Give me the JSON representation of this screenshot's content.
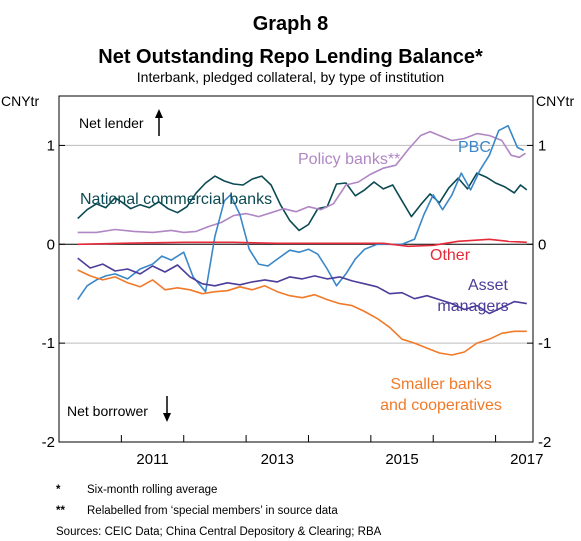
{
  "chart_data": {
    "type": "line",
    "graph_number": "Graph 8",
    "title": "Net Outstanding Repo Lending Balance*",
    "subtitle": "Interbank, pledged collateral, by type of institution",
    "ylabel_left": "CNYtr",
    "ylabel_right": "CNYtr",
    "ylim": [
      -2,
      1.5
    ],
    "xlim": [
      2010.0,
      2017.6
    ],
    "y_ticks": [
      -2,
      -1,
      0,
      1
    ],
    "y_tick_labels": [
      "-2",
      "-1",
      "0",
      "1"
    ],
    "x_ticks": [
      2011.5,
      2013.5,
      2015.5,
      2017.5
    ],
    "x_tick_labels": [
      "2011",
      "2013",
      "2015",
      "2017"
    ],
    "grid": true,
    "annotations": {
      "net_lender": "Net lender",
      "net_borrower": "Net borrower"
    },
    "series": [
      {
        "name": "National commercial banks",
        "label": "National commercial banks",
        "color": "#0b4a52",
        "points": [
          [
            2010.3,
            0.26
          ],
          [
            2010.45,
            0.35
          ],
          [
            2010.6,
            0.41
          ],
          [
            2010.75,
            0.37
          ],
          [
            2010.9,
            0.47
          ],
          [
            2011.0,
            0.43
          ],
          [
            2011.15,
            0.36
          ],
          [
            2011.3,
            0.4
          ],
          [
            2011.45,
            0.37
          ],
          [
            2011.6,
            0.43
          ],
          [
            2011.75,
            0.36
          ],
          [
            2011.9,
            0.32
          ],
          [
            2012.05,
            0.38
          ],
          [
            2012.2,
            0.52
          ],
          [
            2012.35,
            0.62
          ],
          [
            2012.5,
            0.69
          ],
          [
            2012.65,
            0.64
          ],
          [
            2012.8,
            0.61
          ],
          [
            2012.95,
            0.6
          ],
          [
            2013.1,
            0.66
          ],
          [
            2013.25,
            0.69
          ],
          [
            2013.4,
            0.6
          ],
          [
            2013.55,
            0.4
          ],
          [
            2013.7,
            0.24
          ],
          [
            2013.85,
            0.14
          ],
          [
            2014.0,
            0.2
          ],
          [
            2014.15,
            0.36
          ],
          [
            2014.3,
            0.38
          ],
          [
            2014.45,
            0.61
          ],
          [
            2014.6,
            0.62
          ],
          [
            2014.75,
            0.49
          ],
          [
            2014.9,
            0.55
          ],
          [
            2015.05,
            0.63
          ],
          [
            2015.2,
            0.56
          ],
          [
            2015.35,
            0.6
          ],
          [
            2015.5,
            0.44
          ],
          [
            2015.65,
            0.28
          ],
          [
            2015.8,
            0.4
          ],
          [
            2015.95,
            0.51
          ],
          [
            2016.1,
            0.42
          ],
          [
            2016.25,
            0.57
          ],
          [
            2016.4,
            0.67
          ],
          [
            2016.55,
            0.56
          ],
          [
            2016.7,
            0.72
          ],
          [
            2016.85,
            0.68
          ],
          [
            2017.0,
            0.62
          ],
          [
            2017.15,
            0.58
          ],
          [
            2017.3,
            0.52
          ],
          [
            2017.4,
            0.6
          ],
          [
            2017.5,
            0.55
          ]
        ]
      },
      {
        "name": "Policy banks**",
        "label": "Policy banks**",
        "color": "#b086c4",
        "points": [
          [
            2010.3,
            0.12
          ],
          [
            2010.6,
            0.12
          ],
          [
            2010.9,
            0.15
          ],
          [
            2011.2,
            0.13
          ],
          [
            2011.5,
            0.12
          ],
          [
            2011.8,
            0.14
          ],
          [
            2012.0,
            0.12
          ],
          [
            2012.2,
            0.13
          ],
          [
            2012.4,
            0.18
          ],
          [
            2012.6,
            0.22
          ],
          [
            2012.8,
            0.29
          ],
          [
            2013.0,
            0.31
          ],
          [
            2013.2,
            0.28
          ],
          [
            2013.4,
            0.32
          ],
          [
            2013.6,
            0.36
          ],
          [
            2013.8,
            0.33
          ],
          [
            2014.0,
            0.38
          ],
          [
            2014.2,
            0.35
          ],
          [
            2014.4,
            0.41
          ],
          [
            2014.6,
            0.6
          ],
          [
            2014.8,
            0.63
          ],
          [
            2015.0,
            0.71
          ],
          [
            2015.2,
            0.77
          ],
          [
            2015.4,
            0.8
          ],
          [
            2015.6,
            0.96
          ],
          [
            2015.8,
            1.1
          ],
          [
            2015.95,
            1.14
          ],
          [
            2016.1,
            1.1
          ],
          [
            2016.3,
            1.05
          ],
          [
            2016.5,
            1.07
          ],
          [
            2016.7,
            1.12
          ],
          [
            2016.9,
            1.1
          ],
          [
            2017.1,
            1.05
          ],
          [
            2017.25,
            0.9
          ],
          [
            2017.38,
            0.88
          ],
          [
            2017.48,
            0.92
          ]
        ]
      },
      {
        "name": "PBC",
        "label": "PBC",
        "color": "#3a87c8",
        "points": [
          [
            2010.3,
            -0.56
          ],
          [
            2010.45,
            -0.42
          ],
          [
            2010.6,
            -0.36
          ],
          [
            2010.75,
            -0.32
          ],
          [
            2010.9,
            -0.3
          ],
          [
            2011.1,
            -0.35
          ],
          [
            2011.3,
            -0.25
          ],
          [
            2011.5,
            -0.2
          ],
          [
            2011.65,
            -0.12
          ],
          [
            2011.8,
            -0.16
          ],
          [
            2012.0,
            -0.08
          ],
          [
            2012.15,
            -0.33
          ],
          [
            2012.35,
            -0.48
          ],
          [
            2012.5,
            0.08
          ],
          [
            2012.65,
            0.44
          ],
          [
            2012.75,
            0.5
          ],
          [
            2012.9,
            0.3
          ],
          [
            2013.05,
            -0.05
          ],
          [
            2013.2,
            -0.2
          ],
          [
            2013.35,
            -0.22
          ],
          [
            2013.5,
            -0.15
          ],
          [
            2013.7,
            -0.06
          ],
          [
            2013.85,
            -0.08
          ],
          [
            2014.0,
            -0.05
          ],
          [
            2014.15,
            -0.1
          ],
          [
            2014.3,
            -0.25
          ],
          [
            2014.45,
            -0.42
          ],
          [
            2014.6,
            -0.3
          ],
          [
            2014.75,
            -0.15
          ],
          [
            2014.9,
            -0.05
          ],
          [
            2015.1,
            0.0
          ],
          [
            2015.3,
            0.0
          ],
          [
            2015.5,
            0.0
          ],
          [
            2015.7,
            0.05
          ],
          [
            2015.85,
            0.3
          ],
          [
            2016.0,
            0.5
          ],
          [
            2016.15,
            0.35
          ],
          [
            2016.3,
            0.5
          ],
          [
            2016.45,
            0.72
          ],
          [
            2016.6,
            0.55
          ],
          [
            2016.75,
            0.75
          ],
          [
            2016.9,
            0.9
          ],
          [
            2017.05,
            1.15
          ],
          [
            2017.2,
            1.2
          ],
          [
            2017.35,
            0.98
          ],
          [
            2017.45,
            0.95
          ]
        ]
      },
      {
        "name": "Other",
        "label": "Other",
        "color": "#e52a3a",
        "points": [
          [
            2010.3,
            0.0
          ],
          [
            2011.0,
            0.01
          ],
          [
            2012.0,
            0.02
          ],
          [
            2012.8,
            0.02
          ],
          [
            2013.5,
            0.01
          ],
          [
            2014.5,
            0.01
          ],
          [
            2015.2,
            0.01
          ],
          [
            2015.6,
            -0.02
          ],
          [
            2016.0,
            -0.01
          ],
          [
            2016.4,
            0.03
          ],
          [
            2016.9,
            0.05
          ],
          [
            2017.2,
            0.03
          ],
          [
            2017.5,
            0.02
          ]
        ]
      },
      {
        "name": "Asset managers",
        "label": "Asset managers",
        "color": "#4b3d9a",
        "points": [
          [
            2010.3,
            -0.14
          ],
          [
            2010.5,
            -0.24
          ],
          [
            2010.7,
            -0.2
          ],
          [
            2010.9,
            -0.27
          ],
          [
            2011.1,
            -0.25
          ],
          [
            2011.3,
            -0.3
          ],
          [
            2011.5,
            -0.22
          ],
          [
            2011.7,
            -0.28
          ],
          [
            2011.9,
            -0.21
          ],
          [
            2012.1,
            -0.33
          ],
          [
            2012.3,
            -0.4
          ],
          [
            2012.5,
            -0.42
          ],
          [
            2012.7,
            -0.39
          ],
          [
            2012.9,
            -0.41
          ],
          [
            2013.1,
            -0.38
          ],
          [
            2013.3,
            -0.36
          ],
          [
            2013.5,
            -0.38
          ],
          [
            2013.7,
            -0.33
          ],
          [
            2013.9,
            -0.35
          ],
          [
            2014.1,
            -0.32
          ],
          [
            2014.3,
            -0.35
          ],
          [
            2014.5,
            -0.33
          ],
          [
            2014.7,
            -0.37
          ],
          [
            2014.9,
            -0.4
          ],
          [
            2015.1,
            -0.43
          ],
          [
            2015.3,
            -0.5
          ],
          [
            2015.5,
            -0.49
          ],
          [
            2015.7,
            -0.55
          ],
          [
            2015.9,
            -0.52
          ],
          [
            2016.1,
            -0.56
          ],
          [
            2016.3,
            -0.6
          ],
          [
            2016.5,
            -0.66
          ],
          [
            2016.7,
            -0.62
          ],
          [
            2016.9,
            -0.7
          ],
          [
            2017.1,
            -0.64
          ],
          [
            2017.3,
            -0.58
          ],
          [
            2017.5,
            -0.6
          ]
        ]
      },
      {
        "name": "Smaller banks and cooperatives",
        "label": [
          "Smaller banks",
          "and cooperatives"
        ],
        "color": "#f07a2a",
        "points": [
          [
            2010.3,
            -0.26
          ],
          [
            2010.5,
            -0.32
          ],
          [
            2010.7,
            -0.36
          ],
          [
            2010.9,
            -0.33
          ],
          [
            2011.1,
            -0.39
          ],
          [
            2011.3,
            -0.43
          ],
          [
            2011.5,
            -0.36
          ],
          [
            2011.7,
            -0.46
          ],
          [
            2011.9,
            -0.44
          ],
          [
            2012.1,
            -0.46
          ],
          [
            2012.3,
            -0.5
          ],
          [
            2012.5,
            -0.48
          ],
          [
            2012.7,
            -0.47
          ],
          [
            2012.9,
            -0.43
          ],
          [
            2013.1,
            -0.46
          ],
          [
            2013.3,
            -0.42
          ],
          [
            2013.5,
            -0.48
          ],
          [
            2013.7,
            -0.52
          ],
          [
            2013.9,
            -0.54
          ],
          [
            2014.1,
            -0.51
          ],
          [
            2014.3,
            -0.56
          ],
          [
            2014.5,
            -0.6
          ],
          [
            2014.7,
            -0.62
          ],
          [
            2014.9,
            -0.68
          ],
          [
            2015.1,
            -0.75
          ],
          [
            2015.3,
            -0.84
          ],
          [
            2015.5,
            -0.96
          ],
          [
            2015.7,
            -1.0
          ],
          [
            2015.9,
            -1.05
          ],
          [
            2016.1,
            -1.1
          ],
          [
            2016.3,
            -1.12
          ],
          [
            2016.5,
            -1.09
          ],
          [
            2016.7,
            -1.0
          ],
          [
            2016.9,
            -0.96
          ],
          [
            2017.1,
            -0.9
          ],
          [
            2017.3,
            -0.88
          ],
          [
            2017.5,
            -0.88
          ]
        ]
      }
    ],
    "notes": [
      {
        "marker": "*",
        "text": "Six-month rolling average"
      },
      {
        "marker": "**",
        "text": "Relabelled from ‘special members’ in source data"
      }
    ],
    "sources": "Sources: CEIC Data; China Central Depository & Clearing; RBA"
  }
}
